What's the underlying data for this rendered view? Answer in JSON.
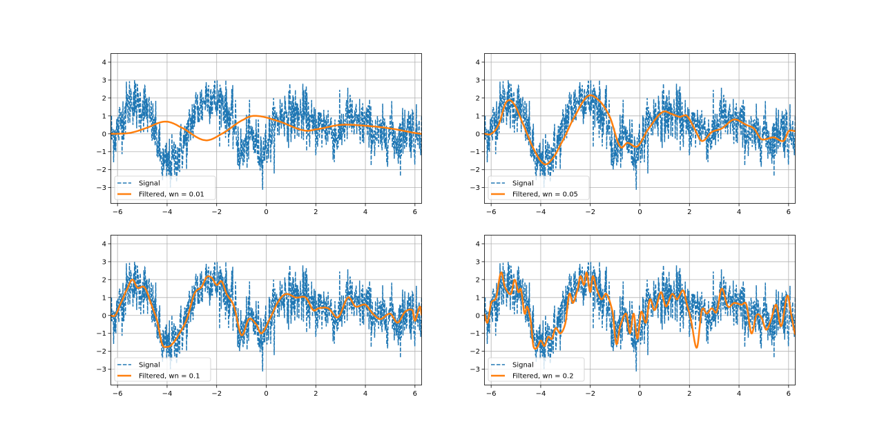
{
  "chart_data": {
    "type": "line",
    "layout": "2x2 subplots",
    "xlim": [
      -6.2832,
      6.2832
    ],
    "ylim": [
      -3.9,
      4.5
    ],
    "xticks": [
      -6,
      -4,
      -2,
      0,
      2,
      4,
      6
    ],
    "yticks": [
      -3,
      -2,
      -1,
      0,
      1,
      2,
      3,
      4
    ],
    "grid": true,
    "legend_placement": "lower-left",
    "colors": {
      "signal": "#1f77b4",
      "filtered": "#ff7f0e",
      "grid": "#b0b0b0"
    },
    "signal": {
      "name": "Signal",
      "style": "dashed",
      "n_samples": 1000,
      "noise_std": 0.75,
      "note_base": "underlying smooth shape follows the wn = 0.1 filtered curve"
    },
    "subplots": [
      {
        "legend": [
          "Signal",
          "Filtered, wn = 0.01"
        ],
        "wn": 0.01,
        "filtered": [
          [
            -6.28,
            0
          ],
          [
            -5.5,
            0.05
          ],
          [
            -4.9,
            0.3
          ],
          [
            -4.1,
            0.68
          ],
          [
            -3.5,
            0.4
          ],
          [
            -2.5,
            -0.35
          ],
          [
            -1.8,
            0
          ],
          [
            -0.9,
            0.8
          ],
          [
            -0.4,
            1.0
          ],
          [
            0.5,
            0.7
          ],
          [
            1.5,
            0.2
          ],
          [
            2,
            0.25
          ],
          [
            3,
            0.5
          ],
          [
            4,
            0.45
          ],
          [
            5,
            0.3
          ],
          [
            6.28,
            0
          ]
        ]
      },
      {
        "legend": [
          "Signal",
          "Filtered, wn = 0.05"
        ],
        "wn": 0.05,
        "filtered": [
          [
            -6.28,
            0
          ],
          [
            -6,
            0
          ],
          [
            -5.7,
            0.5
          ],
          [
            -5.4,
            1.75
          ],
          [
            -5.1,
            1.7
          ],
          [
            -4.7,
            0.5
          ],
          [
            -4.3,
            -0.8
          ],
          [
            -3.9,
            -1.65
          ],
          [
            -3.6,
            -1.5
          ],
          [
            -3.2,
            -0.6
          ],
          [
            -2.7,
            0.8
          ],
          [
            -2.1,
            2.1
          ],
          [
            -1.6,
            1.8
          ],
          [
            -1.2,
            0.9
          ],
          [
            -0.8,
            -0.7
          ],
          [
            -0.5,
            -0.5
          ],
          [
            -0.1,
            -0.7
          ],
          [
            0.3,
            0.2
          ],
          [
            0.9,
            1.2
          ],
          [
            1.3,
            1.1
          ],
          [
            1.6,
            0.95
          ],
          [
            1.9,
            1.0
          ],
          [
            2.2,
            0.3
          ],
          [
            2.5,
            -0.4
          ],
          [
            2.9,
            0.1
          ],
          [
            3.3,
            0.3
          ],
          [
            3.8,
            0.8
          ],
          [
            4.3,
            0.5
          ],
          [
            4.6,
            0.3
          ],
          [
            4.9,
            -0.3
          ],
          [
            5.4,
            -0.2
          ],
          [
            5.8,
            -0.4
          ],
          [
            6.0,
            0.15
          ],
          [
            6.28,
            0.15
          ]
        ]
      },
      {
        "legend": [
          "Signal",
          "Filtered, wn = 0.1"
        ],
        "wn": 0.1,
        "filtered": [
          [
            -6.28,
            0
          ],
          [
            -6.1,
            0
          ],
          [
            -5.9,
            0.6
          ],
          [
            -5.6,
            1.5
          ],
          [
            -5.4,
            2.0
          ],
          [
            -5.2,
            1.55
          ],
          [
            -4.9,
            1.55
          ],
          [
            -4.6,
            0.5
          ],
          [
            -4.4,
            -0.3
          ],
          [
            -4.2,
            -1.6
          ],
          [
            -4.0,
            -1.75
          ],
          [
            -3.8,
            -1.6
          ],
          [
            -3.5,
            -1.0
          ],
          [
            -3.2,
            -0.2
          ],
          [
            -2.9,
            1.2
          ],
          [
            -2.6,
            1.6
          ],
          [
            -2.4,
            2.15
          ],
          [
            -2.2,
            2.1
          ],
          [
            -2.0,
            1.7
          ],
          [
            -1.8,
            1.9
          ],
          [
            -1.6,
            1.2
          ],
          [
            -1.3,
            0.5
          ],
          [
            -1.0,
            -1.1
          ],
          [
            -0.7,
            -0.2
          ],
          [
            -0.4,
            -0.5
          ],
          [
            -0.2,
            -1.0
          ],
          [
            0.1,
            -0.3
          ],
          [
            0.5,
            0.8
          ],
          [
            0.8,
            1.2
          ],
          [
            1.2,
            1.0
          ],
          [
            1.6,
            1.0
          ],
          [
            1.9,
            0.3
          ],
          [
            2.1,
            0.4
          ],
          [
            2.5,
            0.4
          ],
          [
            2.9,
            -0.1
          ],
          [
            3.3,
            1.0
          ],
          [
            3.6,
            0.5
          ],
          [
            4.0,
            0.6
          ],
          [
            4.3,
            0.1
          ],
          [
            4.6,
            -0.2
          ],
          [
            5.0,
            0.1
          ],
          [
            5.3,
            -0.4
          ],
          [
            5.6,
            0.2
          ],
          [
            5.9,
            0.3
          ],
          [
            6.0,
            -0.3
          ],
          [
            6.2,
            0.5
          ],
          [
            6.28,
            0
          ]
        ]
      },
      {
        "legend": [
          "Signal",
          "Filtered, wn = 0.2"
        ],
        "wn": 0.2,
        "filtered": [
          [
            -6.28,
            0.1
          ],
          [
            -6.15,
            -0.4
          ],
          [
            -6.0,
            0.7
          ],
          [
            -5.8,
            1.0
          ],
          [
            -5.6,
            2.4
          ],
          [
            -5.45,
            1.6
          ],
          [
            -5.2,
            1.2
          ],
          [
            -5.05,
            2.0
          ],
          [
            -4.9,
            1.3
          ],
          [
            -4.8,
            1.45
          ],
          [
            -4.65,
            0.1
          ],
          [
            -4.55,
            0.5
          ],
          [
            -4.4,
            -0.3
          ],
          [
            -4.3,
            -1.7
          ],
          [
            -4.15,
            -1.8
          ],
          [
            -4.0,
            -1.4
          ],
          [
            -3.85,
            -1.7
          ],
          [
            -3.7,
            -1.2
          ],
          [
            -3.55,
            -1.3
          ],
          [
            -3.4,
            -0.7
          ],
          [
            -3.2,
            -1.0
          ],
          [
            -3.0,
            -0.4
          ],
          [
            -2.85,
            1.2
          ],
          [
            -2.7,
            0.7
          ],
          [
            -2.5,
            1.5
          ],
          [
            -2.4,
            2.2
          ],
          [
            -2.25,
            1.7
          ],
          [
            -2.15,
            2.4
          ],
          [
            -2.0,
            1.3
          ],
          [
            -1.9,
            2.2
          ],
          [
            -1.75,
            1.5
          ],
          [
            -1.55,
            0.9
          ],
          [
            -1.35,
            1.2
          ],
          [
            -1.1,
            0.2
          ],
          [
            -0.95,
            -1.6
          ],
          [
            -0.8,
            -0.6
          ],
          [
            -0.55,
            0.1
          ],
          [
            -0.4,
            -1.0
          ],
          [
            -0.25,
            0.1
          ],
          [
            -0.1,
            -1.3
          ],
          [
            0.05,
            0.2
          ],
          [
            0.25,
            -0.4
          ],
          [
            0.4,
            0.9
          ],
          [
            0.6,
            0.3
          ],
          [
            0.85,
            1.3
          ],
          [
            1.05,
            0.5
          ],
          [
            1.3,
            1.2
          ],
          [
            1.5,
            0.9
          ],
          [
            1.75,
            1.4
          ],
          [
            1.9,
            0.6
          ],
          [
            2.05,
            -0.2
          ],
          [
            2.3,
            -1.8
          ],
          [
            2.5,
            0.3
          ],
          [
            2.7,
            0.1
          ],
          [
            2.9,
            0.4
          ],
          [
            3.1,
            0.2
          ],
          [
            3.3,
            1.5
          ],
          [
            3.55,
            0.5
          ],
          [
            3.8,
            0.7
          ],
          [
            4.1,
            0.6
          ],
          [
            4.3,
            0.6
          ],
          [
            4.5,
            -1.0
          ],
          [
            4.7,
            0.0
          ],
          [
            4.9,
            -0.1
          ],
          [
            5.1,
            -0.8
          ],
          [
            5.3,
            -0.2
          ],
          [
            5.5,
            0.6
          ],
          [
            5.7,
            -0.6
          ],
          [
            5.95,
            1.1
          ],
          [
            6.1,
            0.1
          ],
          [
            6.28,
            -1.1
          ]
        ]
      }
    ]
  }
}
